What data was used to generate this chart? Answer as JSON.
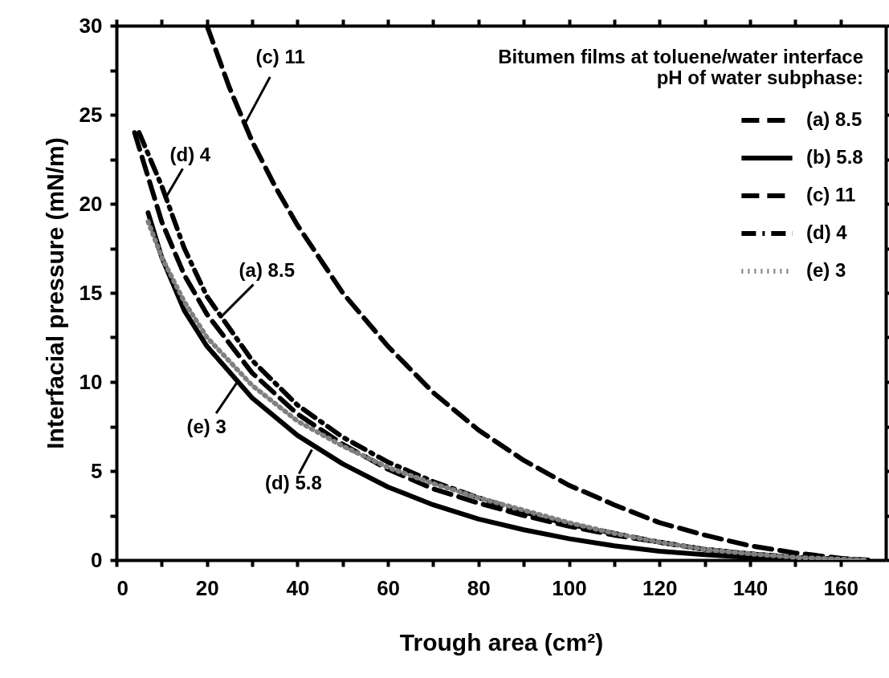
{
  "chart_data": {
    "type": "line",
    "xlabel": "Trough area (cm²)",
    "ylabel": "Interfacial pressure (mN/m)",
    "legend_title": "Bitumen films at toluene/water interface\npH of water subphase:",
    "legend": "top right",
    "grid": false,
    "xlim": [
      0,
      170
    ],
    "xticks": [
      0,
      {
        "value": 10,
        "label": null
      },
      20,
      {
        "value": 30,
        "label": null
      },
      40,
      {
        "value": 50,
        "label": null
      },
      60,
      {
        "value": 70,
        "label": null
      },
      80,
      {
        "value": 90,
        "label": null
      },
      100,
      {
        "value": 110,
        "label": null
      },
      120,
      {
        "value": 130,
        "label": null
      },
      140,
      {
        "value": 150,
        "label": null
      },
      160
    ],
    "ylim": [
      0,
      30
    ],
    "yticks": [
      0,
      {
        "value": 2.5,
        "label": null
      },
      5,
      {
        "value": 7.5,
        "label": null
      },
      10,
      {
        "value": 12.5,
        "label": null
      },
      15,
      {
        "value": 17.5,
        "label": null
      },
      20,
      {
        "value": 22.5,
        "label": null
      },
      25,
      {
        "value": 27.5,
        "label": null
      },
      30
    ],
    "series": [
      {
        "name": "(a) 8.5",
        "color": "#000000",
        "line_style": "dashed",
        "x": [
          4,
          10,
          15,
          20,
          30,
          40,
          50,
          60,
          70,
          80,
          90,
          100,
          110,
          120,
          130,
          140,
          150,
          160,
          166
        ],
        "values": [
          24,
          19,
          16,
          13.8,
          10.5,
          8.2,
          6.5,
          5.1,
          4.0,
          3.2,
          2.5,
          1.9,
          1.4,
          1.0,
          0.6,
          0.35,
          0.15,
          0.05,
          0
        ]
      },
      {
        "name": "(b) 5.8",
        "color": "#000000",
        "line_style": "solid",
        "x": [
          7,
          10,
          15,
          20,
          30,
          40,
          50,
          60,
          70,
          80,
          90,
          100,
          110,
          120,
          130,
          140,
          150,
          160,
          166
        ],
        "values": [
          19.5,
          17,
          14,
          12,
          9.1,
          7.0,
          5.4,
          4.1,
          3.1,
          2.3,
          1.7,
          1.2,
          0.8,
          0.5,
          0.3,
          0.15,
          0.05,
          0,
          0
        ]
      },
      {
        "name": "(c) 11",
        "color": "#000000",
        "line_style": "dashed",
        "x": [
          20,
          25,
          30,
          35,
          40,
          50,
          60,
          70,
          80,
          90,
          100,
          110,
          120,
          130,
          140,
          150,
          160,
          166
        ],
        "values": [
          30,
          26.5,
          23.5,
          21,
          18.8,
          15,
          12,
          9.4,
          7.3,
          5.6,
          4.2,
          3.1,
          2.1,
          1.4,
          0.8,
          0.4,
          0.1,
          0
        ]
      },
      {
        "name": "(d) 4",
        "color": "#000000",
        "line_style": "dashdot",
        "x": [
          5,
          10,
          15,
          20,
          30,
          40,
          50,
          60,
          70,
          80,
          90,
          100,
          110,
          120,
          130,
          140,
          150,
          160,
          166
        ],
        "values": [
          24,
          21,
          17.5,
          14.8,
          11.2,
          8.7,
          6.9,
          5.5,
          4.4,
          3.5,
          2.7,
          2.0,
          1.5,
          1.0,
          0.6,
          0.35,
          0.15,
          0.05,
          0
        ]
      },
      {
        "name": "(e) 3",
        "color": "#808080",
        "line_style": "dotted",
        "x": [
          7,
          10,
          15,
          20,
          30,
          40,
          50,
          60,
          70,
          80,
          90,
          100,
          110,
          120,
          130,
          140,
          150,
          160,
          166
        ],
        "values": [
          19,
          17,
          14.5,
          12.5,
          9.8,
          7.8,
          6.4,
          5.2,
          4.3,
          3.5,
          2.8,
          2.1,
          1.5,
          1.0,
          0.6,
          0.35,
          0.15,
          0.05,
          0
        ]
      }
    ],
    "annotations": [
      {
        "text": "(c) 11",
        "x": 28.6,
        "y": 24.6
      },
      {
        "text": "(d) 4",
        "x": 10.8,
        "y": 20.3
      },
      {
        "text": "(a) 8.5",
        "x": 23.3,
        "y": 13.7
      },
      {
        "text": "(e) 3",
        "x": 27,
        "y": 10.1
      },
      {
        "text": "(d) 5.8",
        "x": 43.2,
        "y": 6.2
      }
    ]
  }
}
